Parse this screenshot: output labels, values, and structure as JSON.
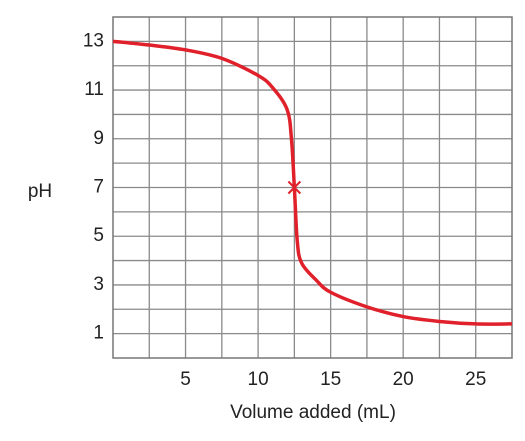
{
  "chart_data": {
    "type": "line",
    "x_label": "Volume added (mL)",
    "y_label": "pH",
    "x": [
      0,
      2.5,
      5,
      7.5,
      10,
      11,
      12,
      12.3,
      12.5,
      12.7,
      13,
      14,
      15,
      17.5,
      20,
      22.5,
      25,
      27.5
    ],
    "series": [
      {
        "color": "#e0202a",
        "values": [
          13.0,
          12.85,
          12.65,
          12.3,
          11.6,
          11.1,
          10.2,
          9.0,
          7.0,
          4.8,
          3.9,
          3.2,
          2.7,
          2.1,
          1.7,
          1.5,
          1.4,
          1.4
        ]
      }
    ],
    "marker": {
      "x": 12.5,
      "y": 7,
      "color": "#e0202a"
    },
    "xlim": [
      0,
      27.5
    ],
    "ylim": [
      0,
      14
    ],
    "xticks": [
      5,
      10,
      15,
      20,
      25
    ],
    "yticks": [
      1,
      3,
      5,
      7,
      9,
      11,
      13
    ],
    "xgrid": [
      2.5,
      5,
      7.5,
      10,
      12.5,
      15,
      17.5,
      20,
      22.5,
      25
    ],
    "ygrid": [
      1,
      2,
      3,
      4,
      5,
      6,
      7,
      8,
      9,
      10,
      11,
      12,
      13
    ],
    "grid": true
  }
}
